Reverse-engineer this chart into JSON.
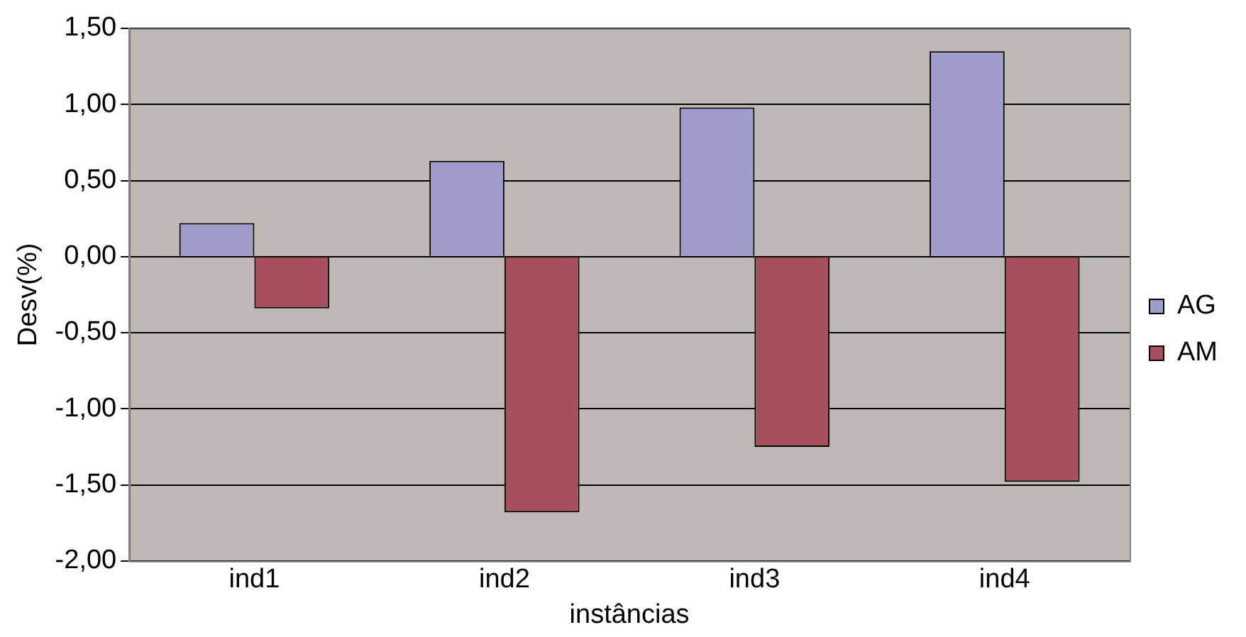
{
  "chart_data": {
    "type": "bar",
    "xlabel": "instâncias",
    "ylabel": "Desv(%)",
    "categories": [
      "ind1",
      "ind2",
      "ind3",
      "ind4"
    ],
    "series": [
      {
        "name": "AG",
        "color": "#9e9ccc",
        "values": [
          0.22,
          0.63,
          0.98,
          1.35
        ]
      },
      {
        "name": "AM",
        "color": "#a5505c",
        "values": [
          -0.34,
          -1.68,
          -1.25,
          -1.48
        ]
      }
    ],
    "ylim": [
      -2,
      1.5
    ],
    "yticks": [
      {
        "value": -2,
        "label": "-2,00"
      },
      {
        "value": -1.5,
        "label": "-1,50"
      },
      {
        "value": -1,
        "label": "-1,00"
      },
      {
        "value": -0.5,
        "label": "-0,50"
      },
      {
        "value": 0,
        "label": "0,00"
      },
      {
        "value": 0.5,
        "label": "0,50"
      },
      {
        "value": 1,
        "label": "1,00"
      },
      {
        "value": 1.5,
        "label": "1,50"
      }
    ],
    "grid": "y",
    "legend": "right"
  }
}
